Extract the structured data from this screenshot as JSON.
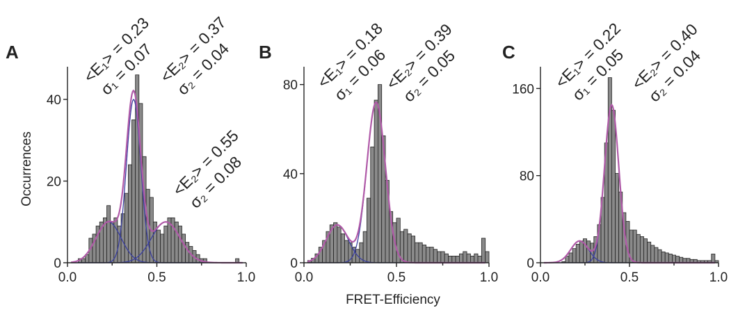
{
  "figure": {
    "shared_xlabel": "FRET-Efficiency"
  },
  "chart_data": [
    {
      "type": "bar",
      "panel": "A",
      "ylabel": "Occurrences",
      "xlim": [
        0.0,
        1.0
      ],
      "ylim": [
        0,
        48
      ],
      "xticks": [
        "0.0",
        "0.5",
        "1.0"
      ],
      "yticks": [
        0,
        20,
        40
      ],
      "bin_width": 0.02,
      "bin_start": 0.0,
      "values": [
        0,
        0,
        0,
        1,
        1,
        2,
        6,
        7,
        9,
        10,
        11,
        14,
        10,
        11,
        9,
        12,
        17,
        24,
        35,
        46,
        39,
        26,
        18,
        16,
        10,
        8,
        7,
        9,
        11,
        11,
        10,
        9,
        7,
        5,
        4,
        3,
        2,
        1,
        1,
        0,
        0,
        0,
        0,
        0,
        0,
        0,
        0,
        1,
        0,
        0
      ],
      "fits": [
        {
          "role": "component",
          "mean": 0.23,
          "sigma": 0.07,
          "amp": 10
        },
        {
          "role": "component",
          "mean": 0.37,
          "sigma": 0.04,
          "amp": 40
        },
        {
          "role": "component",
          "mean": 0.55,
          "sigma": 0.08,
          "amp": 10
        }
      ],
      "annotations": [
        {
          "mean": "<E₁> = 0.23",
          "sigma": "σ₁ = 0.07"
        },
        {
          "mean": "<E₂> = 0.37",
          "sigma": "σ₂ = 0.04"
        },
        {
          "mean": "<E₂> = 0.55",
          "sigma": "σ₂ = 0.08"
        }
      ]
    },
    {
      "type": "bar",
      "panel": "B",
      "ylabel": "",
      "xlim": [
        0.0,
        1.0
      ],
      "ylim": [
        0,
        88
      ],
      "xticks": [
        "0.0",
        "0.5",
        "1.0"
      ],
      "yticks": [
        0,
        40,
        80
      ],
      "bin_width": 0.02,
      "bin_start": 0.0,
      "values": [
        0,
        1,
        2,
        4,
        7,
        10,
        14,
        17,
        18,
        16,
        13,
        10,
        9,
        7,
        6,
        9,
        14,
        29,
        52,
        73,
        80,
        57,
        37,
        23,
        18,
        20,
        14,
        15,
        13,
        12,
        9,
        9,
        8,
        7,
        7,
        6,
        5,
        5,
        4,
        3,
        3,
        3,
        4,
        5,
        4,
        3,
        4,
        3,
        11,
        5
      ],
      "fits": [
        {
          "role": "component",
          "mean": 0.18,
          "sigma": 0.06,
          "amp": 17
        },
        {
          "role": "component",
          "mean": 0.39,
          "sigma": 0.05,
          "amp": 72
        }
      ],
      "annotations": [
        {
          "mean": "<E₁> = 0.18",
          "sigma": "σ₁ = 0.06"
        },
        {
          "mean": "<E₂> = 0.39",
          "sigma": "σ₂ = 0.05"
        }
      ]
    },
    {
      "type": "bar",
      "panel": "C",
      "ylabel": "",
      "xlim": [
        0.0,
        1.0
      ],
      "ylim": [
        0,
        180
      ],
      "xticks": [
        "0.0",
        "0.5",
        "1.0"
      ],
      "yticks": [
        0,
        80,
        160
      ],
      "bin_width": 0.02,
      "bin_start": 0.0,
      "values": [
        0,
        0,
        0,
        0,
        0,
        0,
        1,
        6,
        9,
        13,
        17,
        20,
        22,
        20,
        18,
        24,
        35,
        60,
        110,
        170,
        140,
        82,
        65,
        46,
        38,
        30,
        30,
        26,
        24,
        22,
        19,
        16,
        14,
        12,
        10,
        9,
        8,
        7,
        6,
        5,
        4,
        4,
        3,
        3,
        2,
        2,
        2,
        2,
        8,
        2
      ],
      "fits": [
        {
          "role": "component",
          "mean": 0.22,
          "sigma": 0.05,
          "amp": 20
        },
        {
          "role": "component",
          "mean": 0.4,
          "sigma": 0.04,
          "amp": 145
        }
      ],
      "annotations": [
        {
          "mean": "<E₁> = 0.22",
          "sigma": "σ₁ = 0.05"
        },
        {
          "mean": "<E₂> = 0.40",
          "sigma": "σ₂ = 0.04"
        }
      ]
    }
  ]
}
